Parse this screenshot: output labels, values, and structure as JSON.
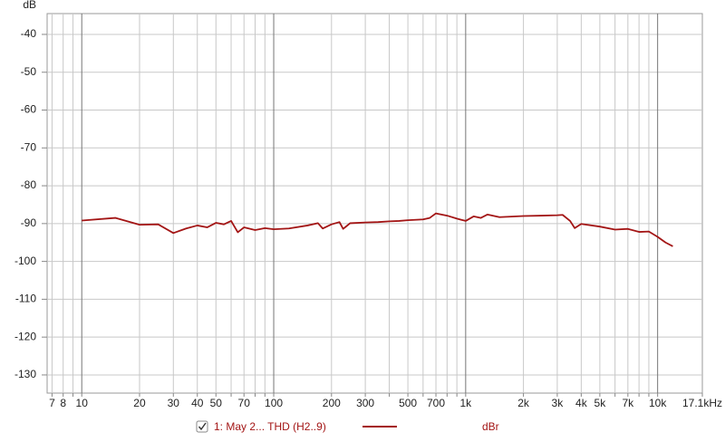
{
  "chart_data": {
    "type": "line",
    "y_label": "dB",
    "xscale": "log",
    "xlim": [
      6.6,
      17100
    ],
    "ylim": [
      -134.8,
      -34.5
    ],
    "xticks": [
      7,
      8,
      10,
      20,
      30,
      40,
      50,
      70,
      100,
      200,
      300,
      500,
      700,
      {
        "value": 1000,
        "label": "1k"
      },
      {
        "value": 2000,
        "label": "2k"
      },
      {
        "value": 3000,
        "label": "3k"
      },
      {
        "value": 4000,
        "label": "4k"
      },
      {
        "value": 5000,
        "label": "5k"
      },
      {
        "value": 7000,
        "label": "7k"
      },
      {
        "value": 10000,
        "label": "10k"
      },
      {
        "value": 17100,
        "label": "17.1kHz"
      }
    ],
    "minor_xticks": [
      9,
      60,
      80,
      90,
      400,
      600,
      800,
      900,
      6000,
      8000,
      9000
    ],
    "yticks": [
      -40,
      -50,
      -60,
      -70,
      -80,
      -90,
      -100,
      -110,
      -120,
      -130
    ],
    "grid": true,
    "series": [
      {
        "name": "1: May 2... THD (H2..9)",
        "unit": "dBr",
        "color": "#a31515",
        "checked": true,
        "x": [
          10,
          15,
          20,
          25,
          30,
          35,
          40,
          45,
          50,
          55,
          60,
          65,
          70,
          80,
          90,
          100,
          120,
          150,
          170,
          180,
          200,
          220,
          230,
          250,
          300,
          350,
          400,
          450,
          500,
          600,
          650,
          700,
          800,
          900,
          1000,
          1100,
          1200,
          1300,
          1500,
          2000,
          2500,
          3000,
          3200,
          3500,
          3700,
          4000,
          5000,
          6000,
          7000,
          8000,
          9000,
          10000,
          11000,
          12000
        ],
        "values": [
          -89.2,
          -88.5,
          -90.3,
          -90.2,
          -92.5,
          -91.3,
          -90.5,
          -91,
          -89.8,
          -90.2,
          -89.3,
          -92.3,
          -91,
          -91.7,
          -91.2,
          -91.5,
          -91.3,
          -90.5,
          -89.9,
          -91.3,
          -90.2,
          -89.6,
          -91.4,
          -89.9,
          -89.7,
          -89.6,
          -89.4,
          -89.3,
          -89.1,
          -88.9,
          -88.5,
          -87.3,
          -87.9,
          -88.7,
          -89.3,
          -88.1,
          -88.5,
          -87.6,
          -88.3,
          -88,
          -87.9,
          -87.8,
          -87.7,
          -89.3,
          -91.2,
          -90.1,
          -90.8,
          -91.6,
          -91.4,
          -92.2,
          -92.1,
          -93.5,
          -95,
          -96
        ]
      }
    ]
  }
}
